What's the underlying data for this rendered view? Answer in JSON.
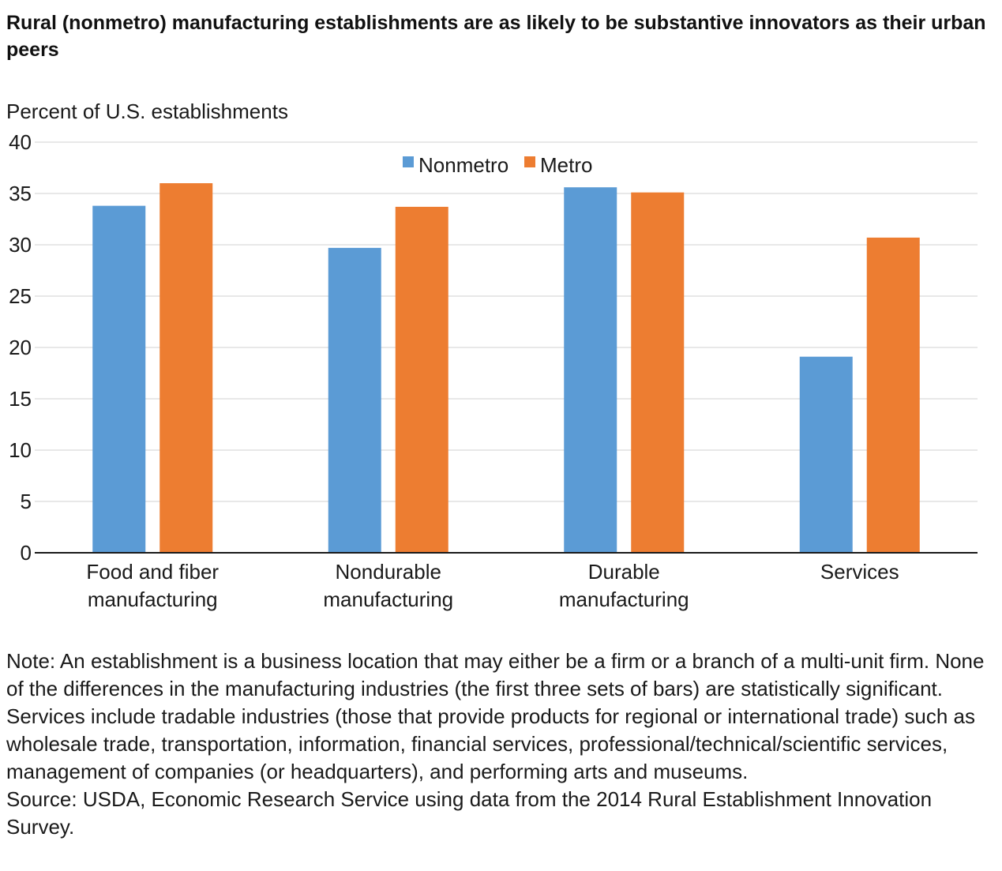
{
  "title": "Rural (nonmetro) manufacturing establishments are as likely to be substantive innovators as their urban peers",
  "note": "Note: An establishment is a business location that may either be a firm or a branch of a multi-unit firm. None of the differences in the manufacturing industries (the first three sets of bars) are statistically significant. Services include tradable industries (those that provide products for regional or international trade) such as wholesale trade, transportation, information, financial services, professional/technical/scientific services, management of companies (or headquarters), and performing arts and museums.",
  "source": "Source: USDA, Economic Research Service using data from the 2014 Rural Establishment Innovation Survey.",
  "chart_data": {
    "type": "bar",
    "ylabel": "Percent of U.S. establishments",
    "xlabel": "",
    "ylim": [
      0,
      40
    ],
    "yticks": [
      0,
      5,
      10,
      15,
      20,
      25,
      30,
      35,
      40
    ],
    "grid": true,
    "legend_position": "top-center",
    "categories": [
      [
        "Food and fiber",
        "manufacturing"
      ],
      [
        "Nondurable",
        "manufacturing"
      ],
      [
        "Durable",
        "manufacturing"
      ],
      [
        "Services"
      ]
    ],
    "series": [
      {
        "name": "Nonmetro",
        "color": "#5b9bd5",
        "values": [
          33.8,
          29.7,
          35.6,
          19.1
        ]
      },
      {
        "name": "Metro",
        "color": "#ed7d31",
        "values": [
          36.0,
          33.7,
          35.1,
          30.7
        ]
      }
    ]
  }
}
